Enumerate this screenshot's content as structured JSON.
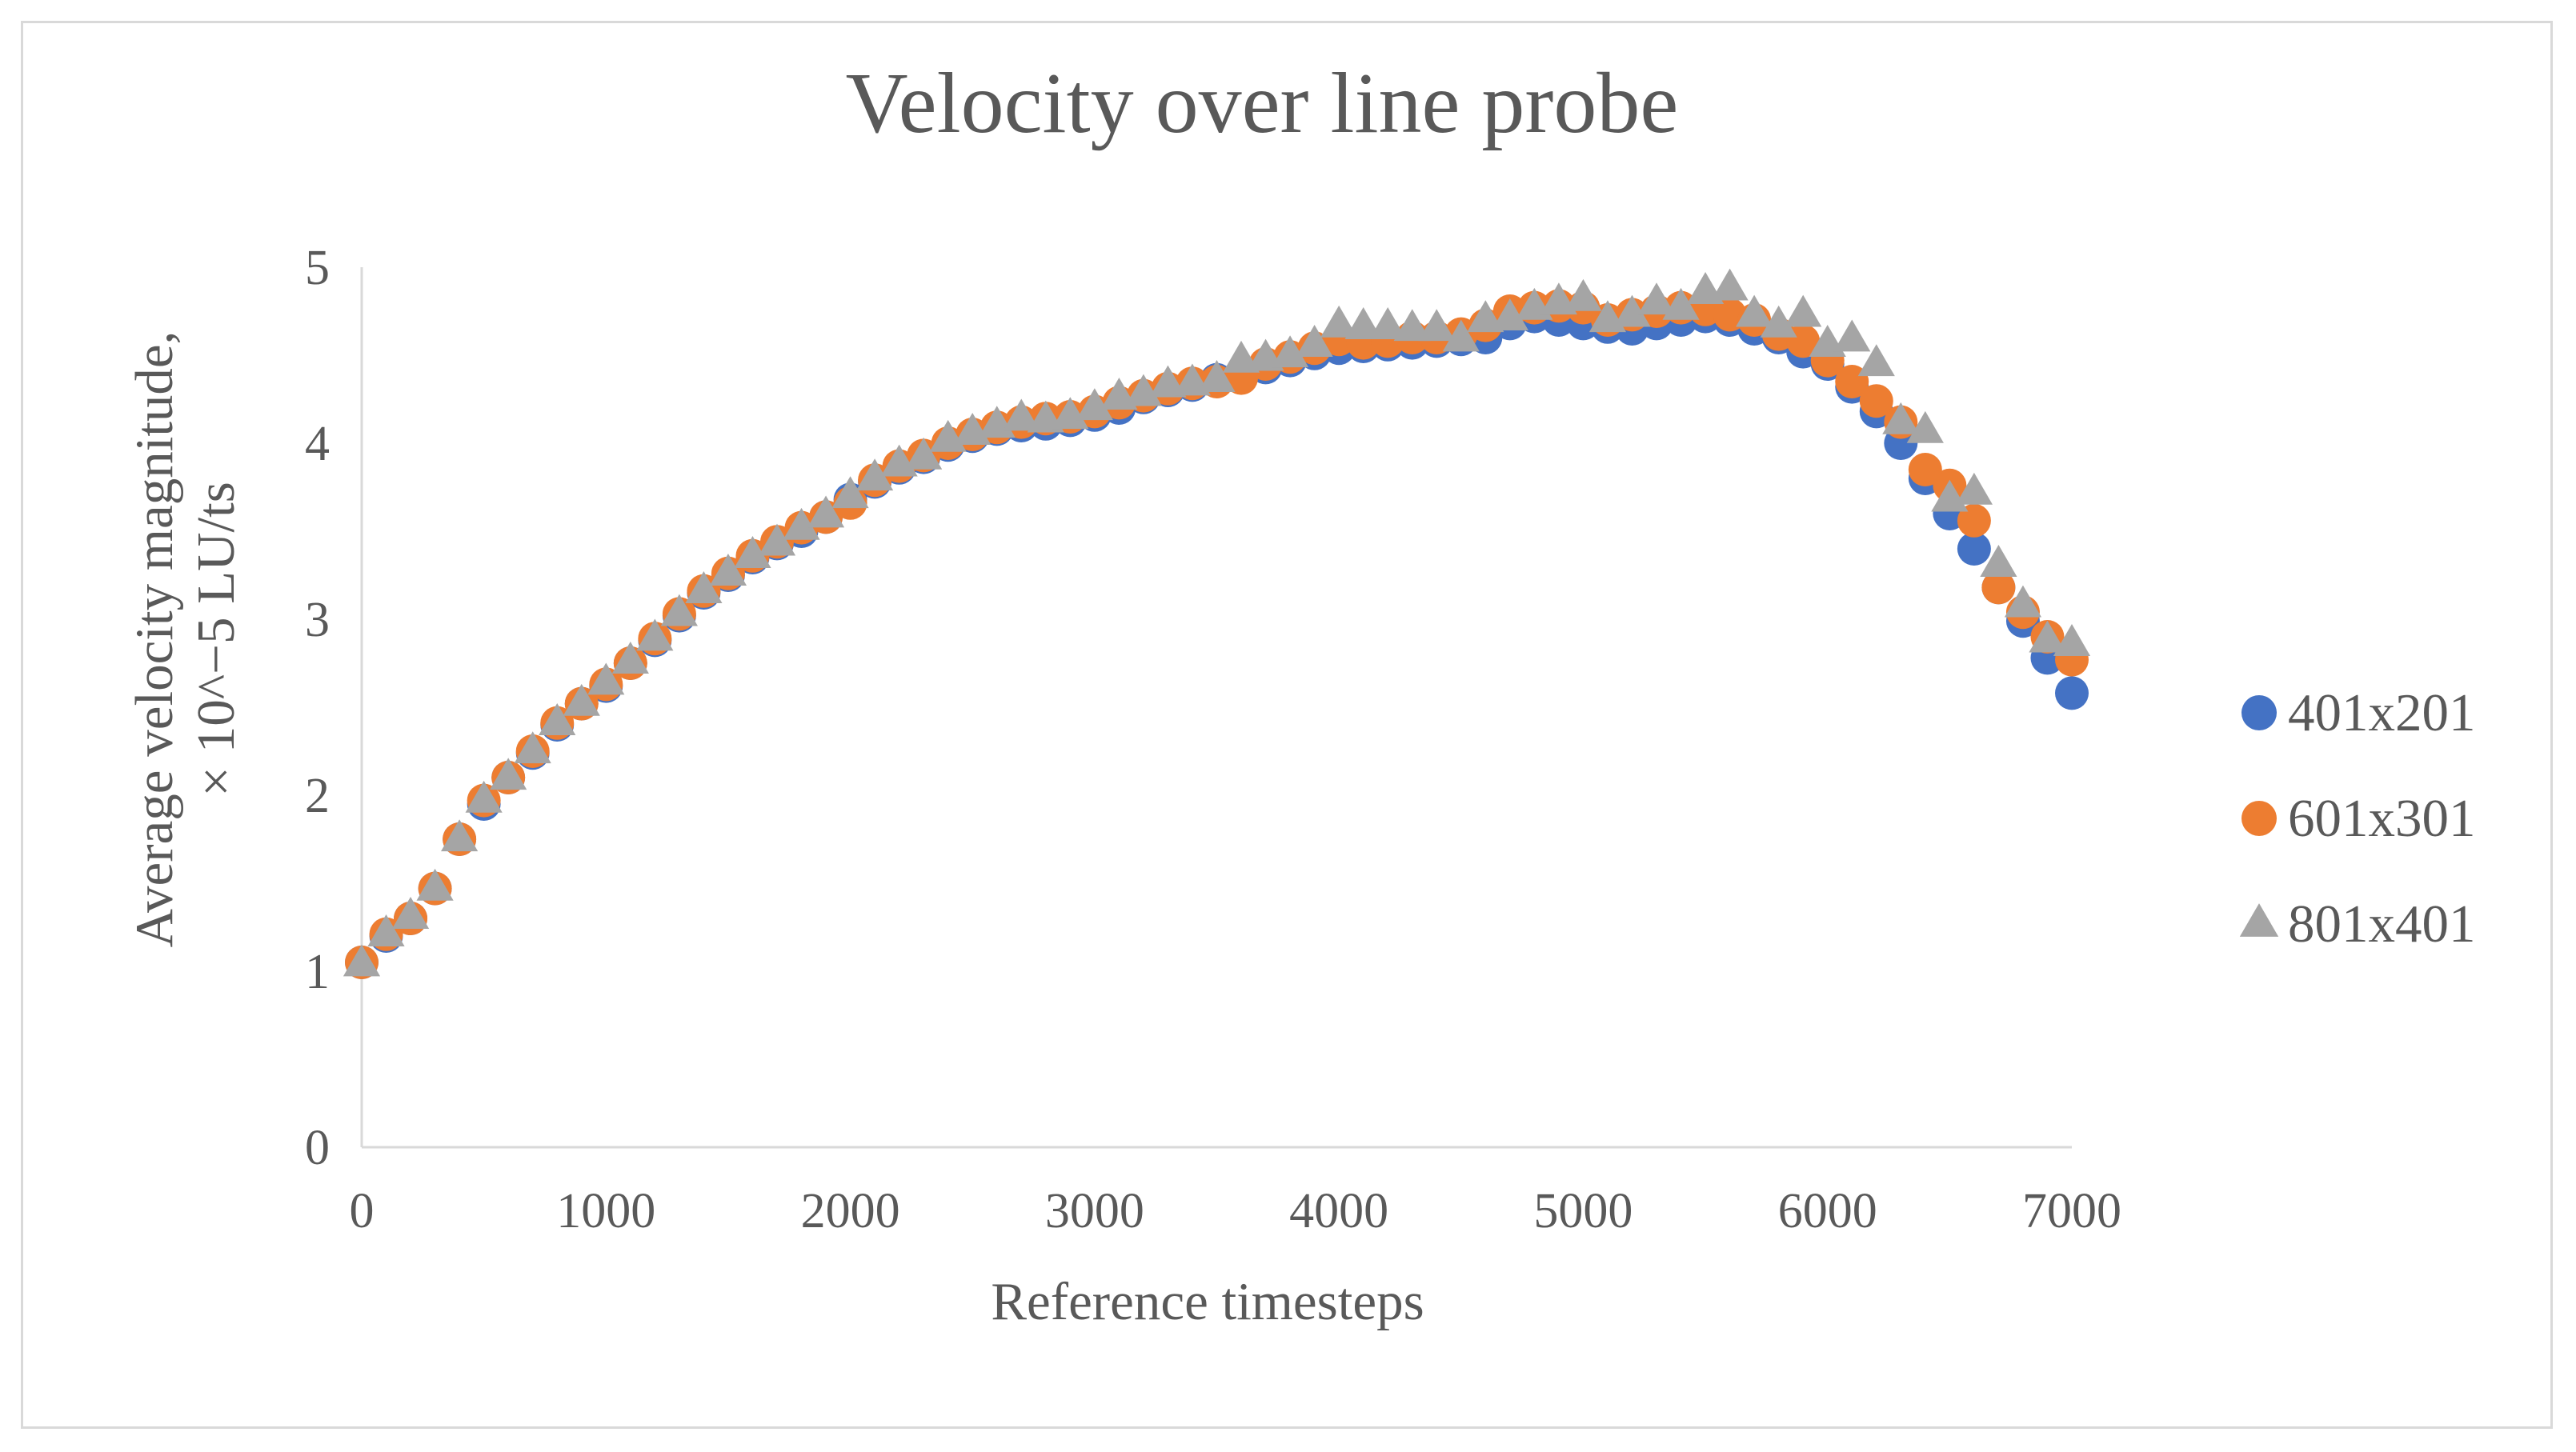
{
  "chart_data": {
    "type": "scatter",
    "title": "Velocity over line probe",
    "xlabel": "Reference timesteps",
    "ylabel_line1": "Average velocity magnitude,",
    "ylabel_line2": "× 10^−5 LU/ts",
    "xlim": [
      0,
      7000
    ],
    "ylim": [
      0,
      5
    ],
    "xticks": [
      0,
      1000,
      2000,
      3000,
      4000,
      5000,
      6000,
      7000
    ],
    "xtick_labels": [
      "0",
      "1000",
      "2000",
      "3000",
      "4000",
      "5000",
      "6000",
      "7000"
    ],
    "yticks": [
      0,
      1,
      2,
      3,
      4,
      5
    ],
    "ytick_labels": [
      "0",
      "1",
      "2",
      "3",
      "4",
      "5"
    ],
    "grid": false,
    "legend_position": "right",
    "x": [
      0,
      100,
      200,
      300,
      400,
      500,
      600,
      700,
      800,
      900,
      1000,
      1100,
      1200,
      1300,
      1400,
      1500,
      1600,
      1700,
      1800,
      1900,
      2000,
      2100,
      2200,
      2300,
      2400,
      2500,
      2600,
      2700,
      2800,
      2900,
      3000,
      3100,
      3200,
      3300,
      3400,
      3500,
      3600,
      3700,
      3800,
      3900,
      4000,
      4100,
      4200,
      4300,
      4400,
      4500,
      4600,
      4700,
      4800,
      4900,
      5000,
      5100,
      5200,
      5300,
      5400,
      5500,
      5600,
      5700,
      5800,
      5900,
      6000,
      6100,
      6200,
      6300,
      6400,
      6500,
      6600,
      6700,
      6800,
      6900,
      7000
    ],
    "series": [
      {
        "name": "401x201",
        "color": "#4472c4",
        "marker": "circle",
        "values": [
          1.05,
          1.2,
          1.3,
          1.47,
          1.75,
          1.95,
          2.1,
          2.24,
          2.4,
          2.52,
          2.62,
          2.75,
          2.88,
          3.02,
          3.15,
          3.25,
          3.35,
          3.43,
          3.5,
          3.58,
          3.68,
          3.78,
          3.86,
          3.92,
          3.99,
          4.04,
          4.08,
          4.1,
          4.11,
          4.13,
          4.16,
          4.2,
          4.26,
          4.3,
          4.33,
          4.36,
          4.39,
          4.43,
          4.47,
          4.51,
          4.54,
          4.55,
          4.56,
          4.57,
          4.58,
          4.59,
          4.6,
          4.68,
          4.72,
          4.7,
          4.68,
          4.66,
          4.65,
          4.68,
          4.7,
          4.72,
          4.7,
          4.65,
          4.6,
          4.52,
          4.45,
          4.32,
          4.18,
          4.0,
          3.8,
          3.6,
          3.4,
          3.18,
          2.99,
          2.78,
          2.58
        ]
      },
      {
        "name": "601x301",
        "color": "#ed7d31",
        "marker": "circle",
        "values": [
          1.05,
          1.21,
          1.3,
          1.47,
          1.75,
          1.97,
          2.1,
          2.25,
          2.41,
          2.52,
          2.63,
          2.75,
          2.89,
          3.03,
          3.16,
          3.26,
          3.36,
          3.44,
          3.52,
          3.58,
          3.66,
          3.79,
          3.87,
          3.93,
          4.0,
          4.05,
          4.09,
          4.12,
          4.14,
          4.15,
          4.18,
          4.23,
          4.27,
          4.31,
          4.34,
          4.35,
          4.37,
          4.45,
          4.49,
          4.54,
          4.59,
          4.57,
          4.58,
          4.6,
          4.6,
          4.62,
          4.67,
          4.75,
          4.77,
          4.78,
          4.77,
          4.7,
          4.73,
          4.75,
          4.77,
          4.76,
          4.73,
          4.7,
          4.62,
          4.58,
          4.47,
          4.35,
          4.24,
          4.12,
          3.85,
          3.76,
          3.56,
          3.18,
          3.04,
          2.9,
          2.77
        ]
      },
      {
        "name": "801x401",
        "color": "#a5a5a5",
        "marker": "triangle",
        "values": [
          1.04,
          1.21,
          1.31,
          1.47,
          1.75,
          1.97,
          2.1,
          2.25,
          2.41,
          2.52,
          2.64,
          2.76,
          2.89,
          3.03,
          3.16,
          3.26,
          3.36,
          3.43,
          3.52,
          3.59,
          3.7,
          3.8,
          3.88,
          3.92,
          4.02,
          4.06,
          4.1,
          4.14,
          4.13,
          4.15,
          4.2,
          4.26,
          4.28,
          4.33,
          4.34,
          4.36,
          4.47,
          4.48,
          4.5,
          4.56,
          4.67,
          4.66,
          4.66,
          4.65,
          4.65,
          4.59,
          4.7,
          4.71,
          4.77,
          4.8,
          4.82,
          4.7,
          4.73,
          4.8,
          4.77,
          4.86,
          4.88,
          4.73,
          4.67,
          4.73,
          4.56,
          4.59,
          4.45,
          4.12,
          4.07,
          3.68,
          3.72,
          3.31,
          3.08,
          2.88,
          2.86
        ]
      }
    ]
  }
}
